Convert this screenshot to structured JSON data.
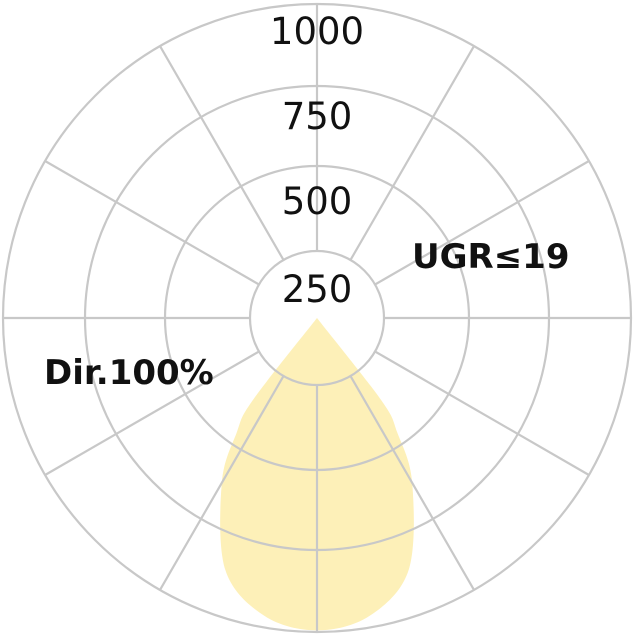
{
  "chart_data": {
    "type": "polar",
    "title": "",
    "radial_ticks": [
      250,
      500,
      750,
      1000
    ],
    "radial_tick_labels": [
      "250",
      "500",
      "750",
      "1000"
    ],
    "rlim": [
      0,
      1000
    ],
    "angular_grid_step_deg": 30,
    "grid": true,
    "series": [
      {
        "angles_deg": [
          0,
          10,
          20,
          30,
          35,
          38,
          40
        ],
        "values": [
          995,
          965,
          860,
          620,
          465,
          360,
          0
        ],
        "symmetric": true,
        "fill": "#fdf0b8"
      }
    ],
    "annotations": [
      "UGR≤19",
      "Dir.100%"
    ],
    "grid_color": "#c8c8c8"
  }
}
